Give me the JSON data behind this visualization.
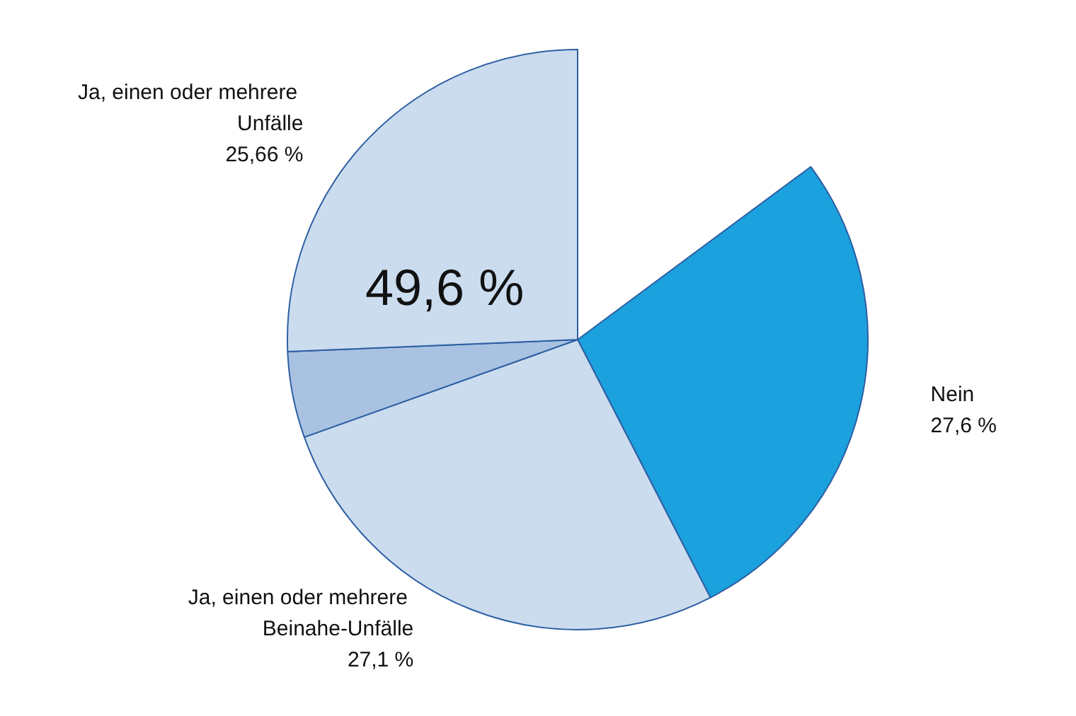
{
  "chart_data": {
    "type": "pie",
    "categories": [
      "Nein",
      "Ja, einen oder mehrere Beinahe-Unfälle",
      null,
      "Ja, einen oder mehrere Unfälle"
    ],
    "values": [
      27.6,
      27.1,
      4.8,
      25.66
    ],
    "colors": [
      "#1ba1dd",
      "#cbdcef",
      "#a9c2e2",
      "#cbdcef"
    ],
    "value_labels": [
      "27,6 %",
      "27,1 %",
      null,
      "25,66 %"
    ],
    "annotations": [
      "49,6 %"
    ],
    "legend": false
  }
}
